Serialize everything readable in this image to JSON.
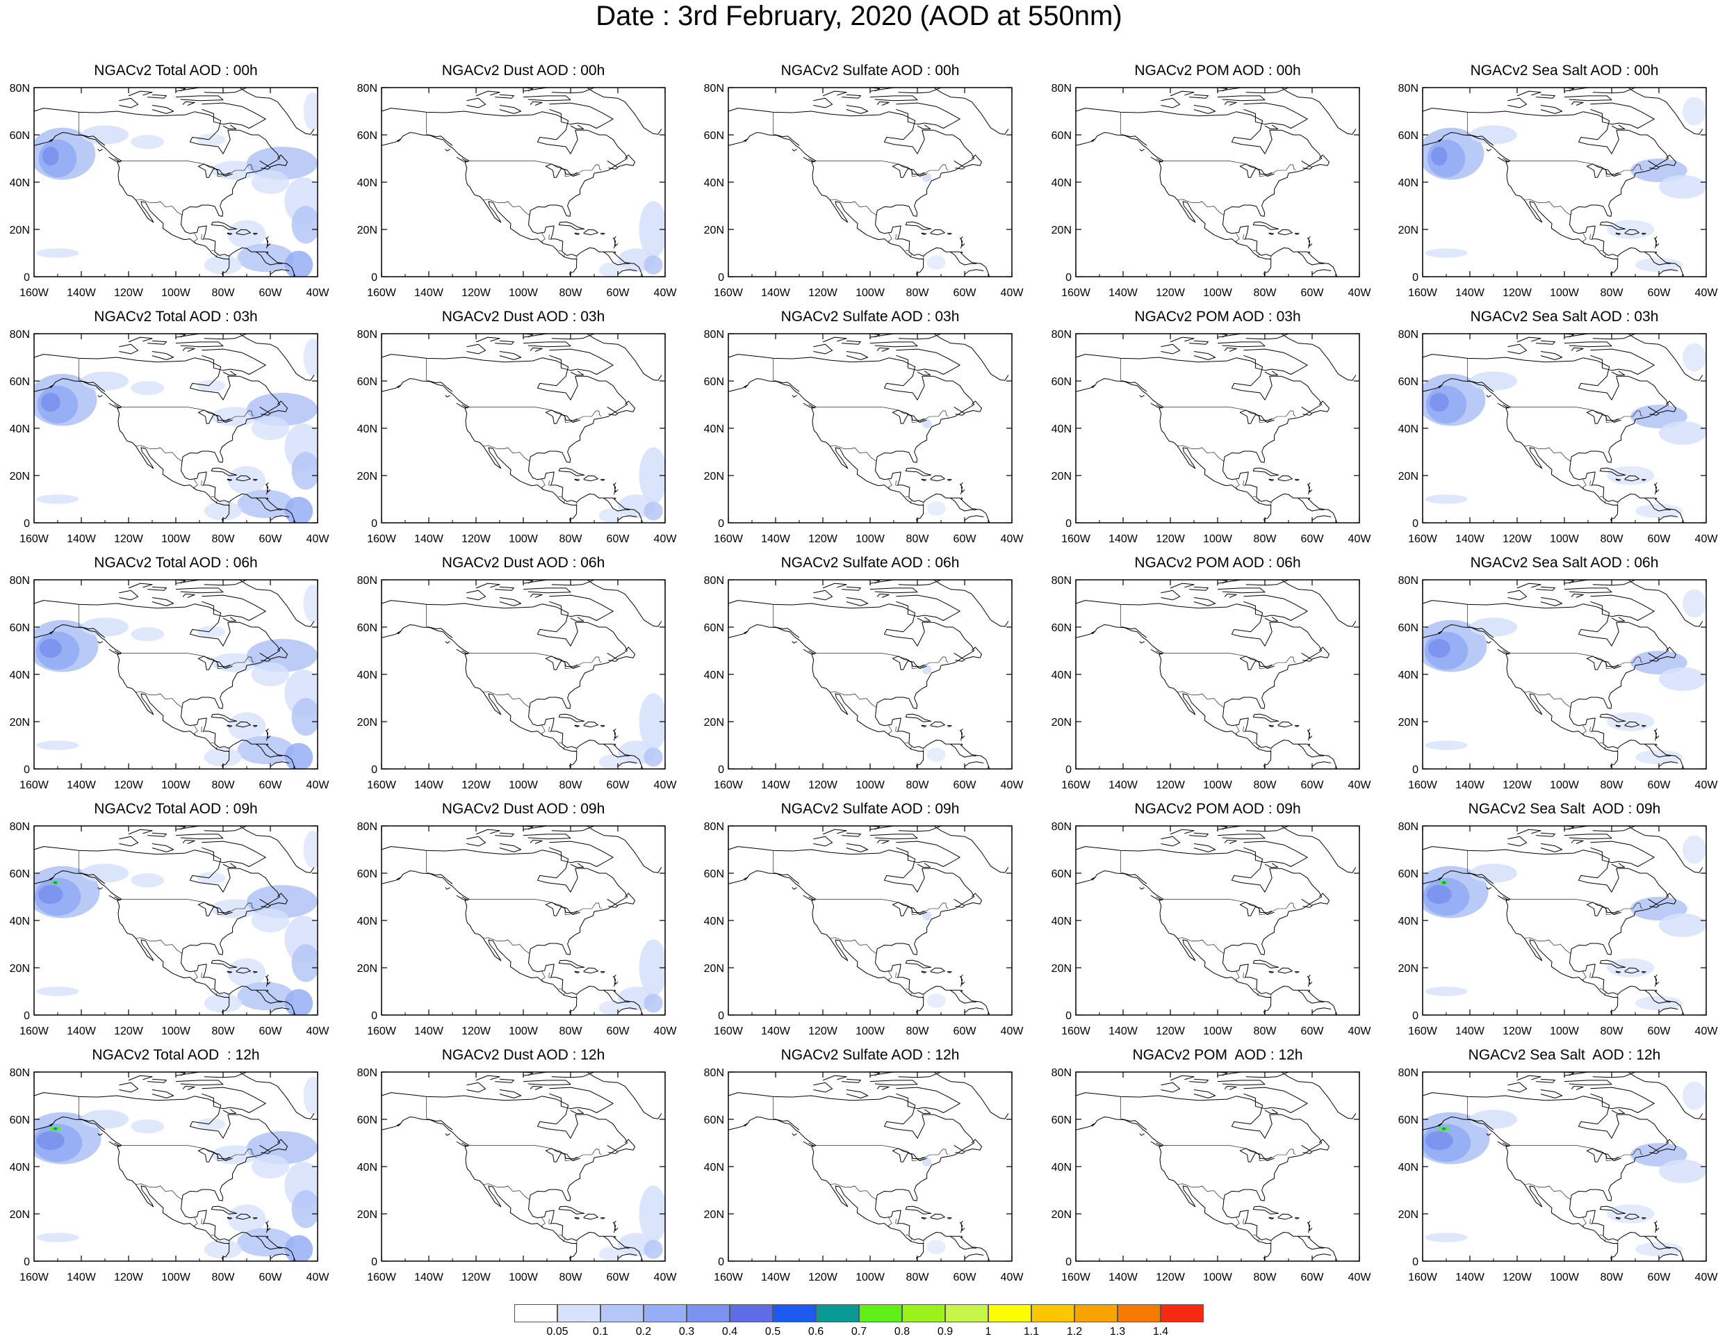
{
  "title": "Date : 3rd February, 2020 (AOD at 550nm)",
  "map_panels": {
    "x_ticks": [
      "160W",
      "140W",
      "120W",
      "100W",
      "80W",
      "60W",
      "40W"
    ],
    "y_ticks": [
      "80N",
      "60N",
      "40N",
      "20N",
      "0"
    ],
    "lon_range": [
      -160,
      -40
    ],
    "lat_range": [
      0,
      80
    ],
    "rows": [
      [
        "NGACv2 Total AOD : 00h",
        "NGACv2 Dust AOD : 00h",
        "NGACv2 Sulfate AOD : 00h",
        "NGACv2 POM AOD : 00h",
        "NGACv2 Sea Salt AOD : 00h"
      ],
      [
        "NGACv2 Total AOD : 03h",
        "NGACv2 Dust AOD : 03h",
        "NGACv2 Sulfate AOD : 03h",
        "NGACv2 POM AOD : 03h",
        "NGACv2 Sea Salt AOD : 03h"
      ],
      [
        "NGACv2 Total AOD : 06h",
        "NGACv2 Dust AOD : 06h",
        "NGACv2 Sulfate AOD : 06h",
        "NGACv2 POM AOD : 06h",
        "NGACv2 Sea Salt AOD : 06h"
      ],
      [
        "NGACv2 Total AOD : 09h",
        "NGACv2 Dust AOD : 09h",
        "NGACv2 Sulfate AOD : 09h",
        "NGACv2 POM AOD : 09h",
        "NGACv2 Sea Salt  AOD : 09h"
      ],
      [
        "NGACv2 Total AOD  : 12h",
        "NGACv2 Dust AOD : 12h",
        "NGACv2 Sulfate AOD : 12h",
        "NGACv2 POM  AOD : 12h",
        "NGACv2 Sea Salt  AOD : 12h"
      ]
    ]
  },
  "colorbar": {
    "colors": [
      "#ffffff",
      "#d6e1fa",
      "#b5c7f6",
      "#95aef4",
      "#7b92ef",
      "#5e6ce8",
      "#1f5af0",
      "#0a9a96",
      "#5ef018",
      "#9af21a",
      "#c8f54a",
      "#fbfd00",
      "#fbc700",
      "#f9a200",
      "#f77a00",
      "#f52a10"
    ],
    "labels": [
      "0.05",
      "0.1",
      "0.2",
      "0.3",
      "0.4",
      "0.5",
      "0.6",
      "0.7",
      "0.8",
      "0.9",
      "1",
      "1.1",
      "1.2",
      "1.3",
      "1.4"
    ]
  }
}
